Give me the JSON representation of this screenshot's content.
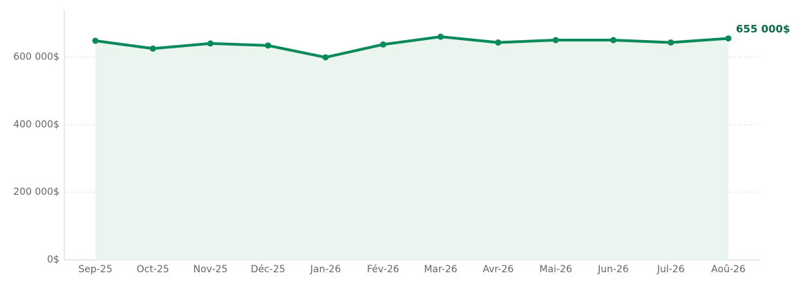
{
  "chart_data": {
    "type": "line",
    "categories": [
      "Sep-25",
      "Oct-25",
      "Nov-25",
      "Déc-25",
      "Jan-26",
      "Fév-26",
      "Mar-26",
      "Avr-26",
      "Mai-26",
      "Jun-26",
      "Jul-26",
      "Aoû-26"
    ],
    "values": [
      648000,
      625000,
      640000,
      634000,
      599000,
      637000,
      660000,
      643000,
      650000,
      650000,
      643000,
      655000
    ],
    "value_labels": [
      null,
      null,
      null,
      null,
      null,
      null,
      null,
      null,
      null,
      null,
      null,
      "655 000$"
    ],
    "color": "#0a8a5a",
    "area_color": "#eaf5f0",
    "ylim": [
      0,
      740000
    ],
    "yticks": [
      {
        "value": 0,
        "label": "0$"
      },
      {
        "value": 200000,
        "label": "200 000$"
      },
      {
        "value": 400000,
        "label": "400 000$"
      },
      {
        "value": 600000,
        "label": "600 000$"
      }
    ],
    "grid": true
  }
}
